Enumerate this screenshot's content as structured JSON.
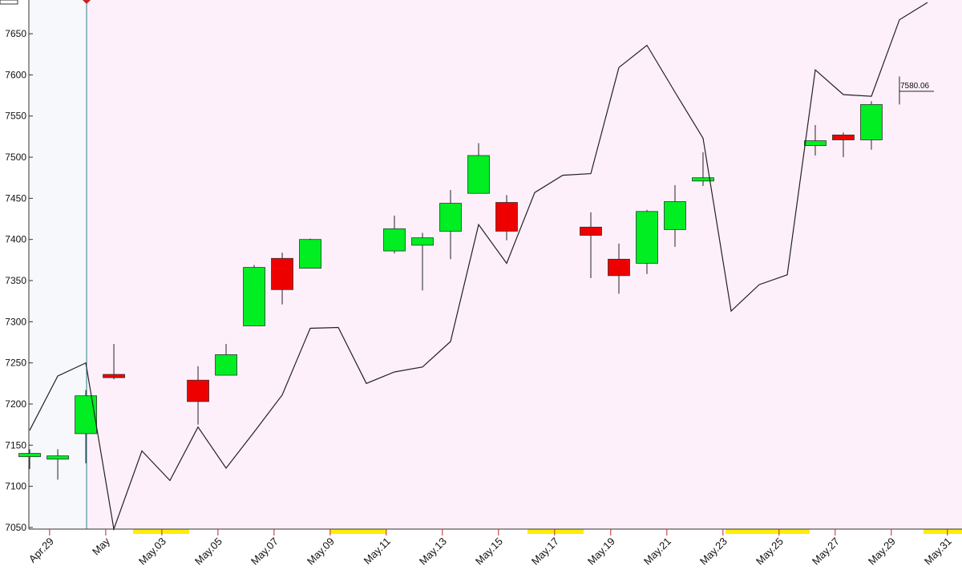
{
  "chart_data": {
    "type": "candlestick",
    "xlim": [
      -0.03,
      33.23
    ],
    "xticks": [
      {
        "value": 0.71,
        "label": "Apr.29"
      },
      {
        "value": 2.71,
        "label": "May"
      },
      {
        "value": 4.71,
        "label": "May.03"
      },
      {
        "value": 6.71,
        "label": "May.05"
      },
      {
        "value": 8.71,
        "label": "May.07"
      },
      {
        "value": 10.71,
        "label": "May.09"
      },
      {
        "value": 12.71,
        "label": "May.11"
      },
      {
        "value": 14.71,
        "label": "May.13"
      },
      {
        "value": 16.71,
        "label": "May.15"
      },
      {
        "value": 18.71,
        "label": "May.17"
      },
      {
        "value": 20.71,
        "label": "May.19"
      },
      {
        "value": 22.71,
        "label": "May.21"
      },
      {
        "value": 24.71,
        "label": "May.23"
      },
      {
        "value": 26.71,
        "label": "May.25"
      },
      {
        "value": 28.71,
        "label": "May.27"
      },
      {
        "value": 30.71,
        "label": "May.29"
      },
      {
        "value": 32.71,
        "label": "May.31"
      }
    ],
    "ylim": [
      7048,
      7691
    ],
    "yticks": [
      7050,
      7100,
      7150,
      7200,
      7250,
      7300,
      7350,
      7400,
      7450,
      7500,
      7550,
      7600,
      7650
    ],
    "up_color": "#00ee22",
    "down_color": "#ee0000",
    "line_color": "#222222",
    "candles": {
      "x": [
        0,
        1,
        2,
        3,
        6,
        7,
        8,
        9,
        10,
        13,
        14,
        15,
        16,
        17,
        20,
        21,
        22,
        23,
        24,
        28,
        29,
        30,
        31
      ],
      "open": [
        7136,
        7133,
        7164,
        7236,
        7229,
        7235,
        7295,
        7377,
        7365,
        7386,
        7393,
        7410,
        7456,
        7445,
        7415,
        7376,
        7371,
        7412,
        7471,
        7514,
        7527,
        7521,
        null
      ],
      "high": [
        7145,
        7145,
        7217,
        7273,
        7246,
        7273,
        7369,
        7384,
        7401,
        7429,
        7408,
        7460,
        7517,
        7454,
        7433,
        7395,
        7436,
        7466,
        7506,
        7539,
        7530,
        7568,
        7598
      ],
      "low": [
        7121,
        7108,
        7128,
        7230,
        7175,
        7235,
        7295,
        7321,
        7365,
        7383,
        7338,
        7376,
        7456,
        7399,
        7353,
        7334,
        7358,
        7391,
        7465,
        7502,
        7500,
        7509,
        7564
      ],
      "close": [
        7140,
        7137,
        7210,
        7232,
        7203,
        7260,
        7366,
        7339,
        7400,
        7413,
        7402,
        7444,
        7502,
        7410,
        7405,
        7356,
        7434,
        7446,
        7475,
        7520,
        7521,
        7564,
        null
      ]
    },
    "line": {
      "x": [
        0,
        1,
        2,
        3,
        4,
        5,
        6,
        7,
        8,
        9,
        10,
        11,
        12,
        13,
        14,
        15,
        16,
        17,
        18,
        19,
        20,
        21,
        22,
        23,
        24,
        25,
        26,
        27,
        28,
        29,
        30,
        31,
        32
      ],
      "values": [
        7168,
        7234,
        7250,
        7048,
        7143,
        7107,
        7172,
        7122,
        7166,
        7211,
        7292,
        7293,
        7225,
        7239,
        7245,
        7276,
        7418,
        7371,
        7457,
        7478,
        7480,
        7609,
        7636,
        7579,
        7523,
        7313,
        7345,
        7357,
        7606,
        7576,
        7574,
        7667,
        7688
      ]
    },
    "last_price": 7580.06
  }
}
